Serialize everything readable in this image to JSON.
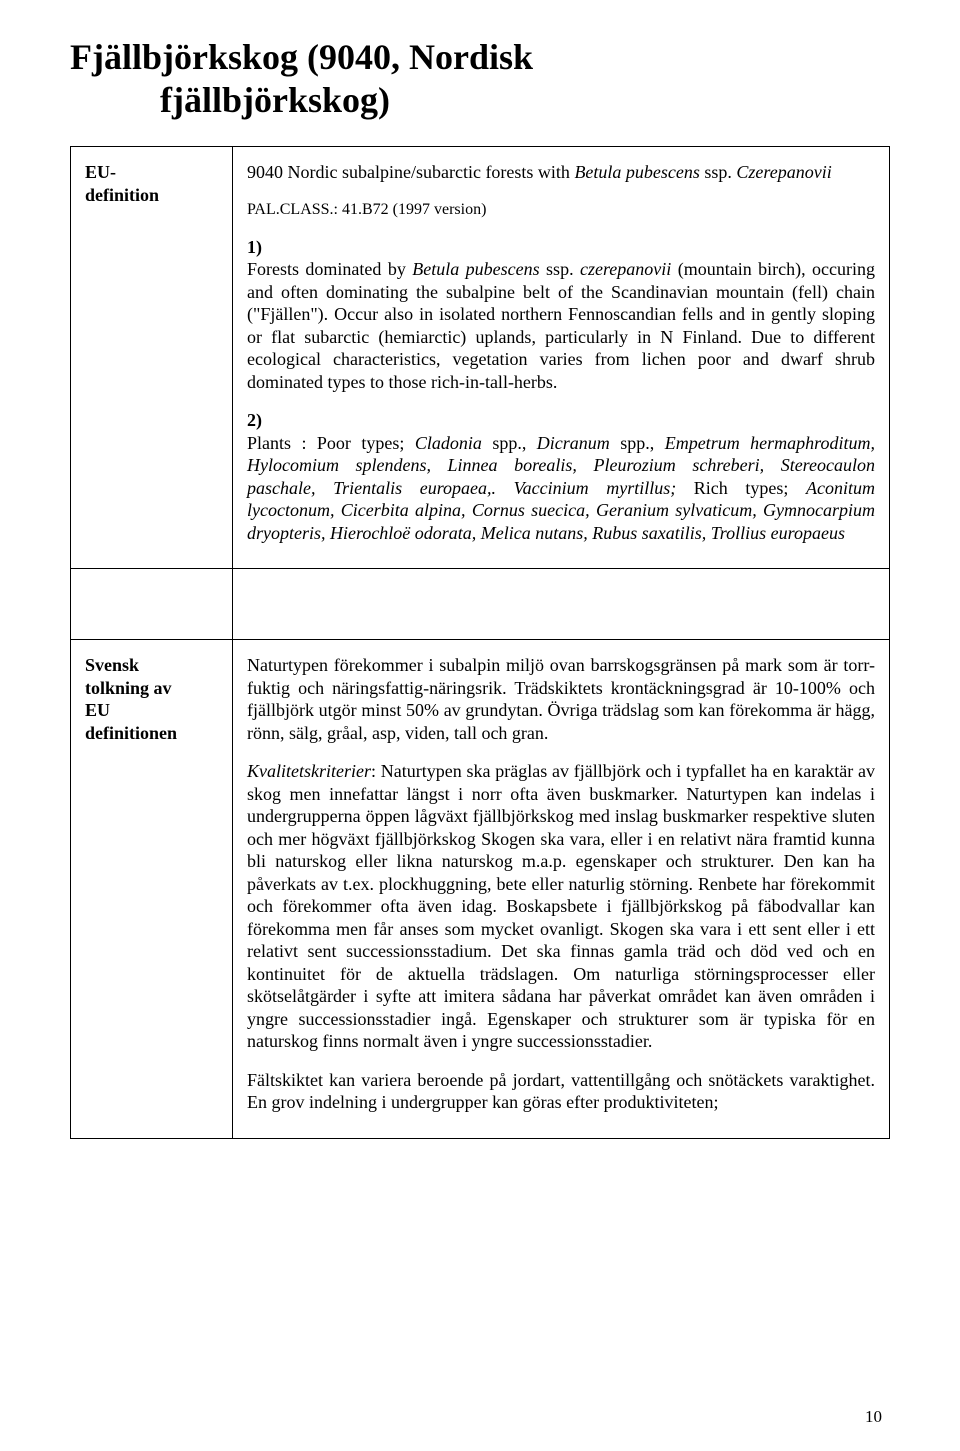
{
  "title": {
    "line1": "Fjällbjörkskog (9040, Nordisk",
    "line2": "fjällbjörkskog)"
  },
  "row1": {
    "left_line1": "EU-",
    "left_line2": "definition",
    "heading_plain": "9040 Nordic subalpine/subarctic forests with ",
    "heading_italic1": "Betula pubescens",
    "heading_plain2": " ssp. ",
    "heading_italic2": "Czerepanovii",
    "palclass": "PAL.CLASS.: 41.B72 (1997 version)",
    "sec1_num": "1)",
    "sec1_p1a": "Forests dominated by ",
    "sec1_p1_it1": "Betula pubescens",
    "sec1_p1b": " ssp. ",
    "sec1_p1_it2": "czerepanovii",
    "sec1_p1c": " (mountain birch), occuring and often dominating the subalpine belt of the Scandinavian mountain (fell) chain (\"Fjällen\"). Occur also in isolated northern Fennoscandian fells and in gently sloping or flat subarctic (hemiarctic) uplands, particularly in N Finland. Due to different ecological characteristics, vegetation varies from lichen poor and dwarf shrub dominated types to those rich-in-tall-herbs.",
    "sec2_num": "2)",
    "sec2_a": "Plants : Poor types; ",
    "sec2_it1": "Cladonia",
    "sec2_b": " spp., ",
    "sec2_it2": "Dicranum",
    "sec2_c": " spp., ",
    "sec2_it3": "Empetrum hermaphroditum, Hylocomium splendens, Linnea borealis, Pleurozium schreberi, Stereocaulon paschale, Trientalis europaea,. Vaccinium myrtillus;",
    "sec2_d": " Rich types; ",
    "sec2_it4": "Aconitum lycoctonum, Cicerbita alpina, Cornus suecica, Geranium sylvaticum, Gymnocarpium dryopteris, Hierochloë odorata, Melica nutans, Rubus saxatilis, Trollius europaeus"
  },
  "row2": {
    "left_line1": "Svensk",
    "left_line2": "tolkning av",
    "left_line3": "EU",
    "left_line4": "definitionen",
    "p1": "Naturtypen förekommer i subalpin miljö ovan barrskogsgränsen på mark som är torr-fuktig och näringsfattig-näringsrik. Trädskiktets krontäckningsgrad är 10-100% och fjällbjörk utgör minst 50% av grundytan. Övriga trädslag som kan förekomma är hägg, rönn, sälg, gråal, asp, viden, tall och gran.",
    "p2_it": "Kvalitetskriterier",
    "p2": ": Naturtypen ska präglas av fjällbjörk och i typfallet ha en karaktär av skog men  innefattar längst i norr ofta även buskmarker. Naturtypen kan indelas i undergrupperna öppen lågväxt fjällbjörkskog med inslag buskmarker respektive sluten och mer högväxt fjällbjörkskog Skogen ska vara, eller i en relativt nära framtid kunna bli naturskog eller likna naturskog m.a.p. egenskaper och strukturer. Den kan ha påverkats av t.ex. plockhuggning, bete eller naturlig störning. Renbete har förekommit och förekommer ofta även idag. Boskapsbete i fjällbjörkskog på fäbodvallar kan förekomma men får anses som mycket ovanligt. Skogen ska vara i ett sent eller i ett relativt sent successionsstadium. Det ska finnas gamla träd och död ved och en kontinuitet för de aktuella trädslagen. Om naturliga störningsprocesser eller skötselåtgärder i syfte att imitera sådana har påverkat området kan även områden i yngre successionsstadier ingå. Egenskaper och strukturer som är typiska för en naturskog finns normalt även i yngre successionsstadier.",
    "p3": "Fältskiktet kan variera beroende på jordart, vattentillgång och snötäckets varaktighet. En grov indelning i undergrupper kan göras efter produktiviteten;"
  },
  "page_number": "10"
}
